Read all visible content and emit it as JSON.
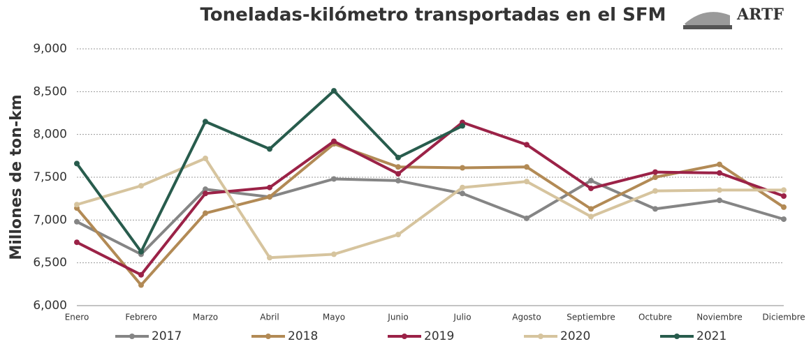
{
  "chart_data": {
    "type": "line",
    "title": "Toneladas-kilómetro transportadas en el SFM",
    "logo_text": "ARTF",
    "y_label": "Millones de ton-km",
    "categories": [
      "Enero",
      "Febrero",
      "Marzo",
      "Abril",
      "Mayo",
      "Junio",
      "Julio",
      "Agosto",
      "Septiembre",
      "Octubre",
      "Noviembre",
      "Diciembre"
    ],
    "series": [
      {
        "name": "2017",
        "color": "#858585",
        "values": [
          6980,
          6600,
          7360,
          7270,
          7480,
          7460,
          7310,
          7020,
          7460,
          7130,
          7230,
          7010
        ]
      },
      {
        "name": "2018",
        "color": "#b28a55",
        "values": [
          7140,
          6240,
          7080,
          7270,
          7890,
          7620,
          7610,
          7620,
          7130,
          7500,
          7650,
          7150
        ]
      },
      {
        "name": "2019",
        "color": "#9b2247",
        "values": [
          6740,
          6360,
          7310,
          7380,
          7920,
          7540,
          8140,
          7880,
          7370,
          7560,
          7550,
          7280
        ]
      },
      {
        "name": "2020",
        "color": "#d6c49e",
        "values": [
          7180,
          7400,
          7720,
          6560,
          6600,
          6830,
          7380,
          7450,
          7040,
          7340,
          7350,
          7350
        ]
      },
      {
        "name": "2021",
        "color": "#285c4d",
        "values": [
          7660,
          6630,
          8150,
          7830,
          8510,
          7730,
          8100,
          null,
          null,
          null,
          null,
          null
        ]
      }
    ],
    "ylim": [
      6000,
      9000
    ],
    "yticks": [
      {
        "value": 6000,
        "label": "6,000"
      },
      {
        "value": 6500,
        "label": "6,500"
      },
      {
        "value": 7000,
        "label": "7,000"
      },
      {
        "value": 7500,
        "label": "7,500"
      },
      {
        "value": 8000,
        "label": "8,000"
      },
      {
        "value": 8500,
        "label": "8,500"
      },
      {
        "value": 9000,
        "label": "9,000"
      }
    ],
    "grid": true,
    "legend": "bottom"
  }
}
